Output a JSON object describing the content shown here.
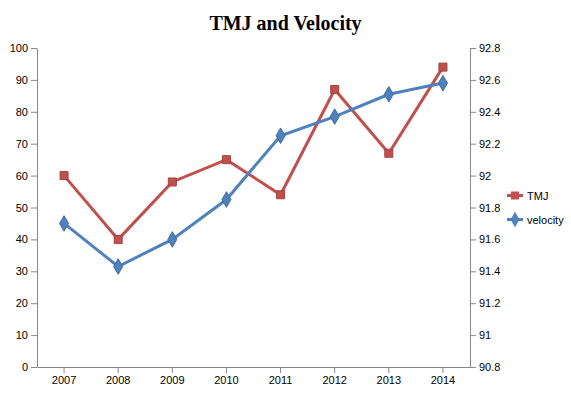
{
  "chart_data": {
    "type": "line",
    "title": "TMJ and Velocity",
    "categories": [
      "2007",
      "2008",
      "2009",
      "2010",
      "2011",
      "2012",
      "2013",
      "2014"
    ],
    "series": [
      {
        "name": "TMJ",
        "color": "#c0504d",
        "marker": "square",
        "values": [
          60,
          40,
          58,
          65,
          54,
          87,
          67,
          94
        ]
      },
      {
        "name": "velocity",
        "color": "#4f81bd",
        "marker": "diamond",
        "axis": "y2",
        "values": [
          91.7,
          91.43,
          91.6,
          91.85,
          92.25,
          92.37,
          92.51,
          92.58
        ]
      }
    ],
    "ylim": [
      0,
      100
    ],
    "yticks": [
      0,
      10,
      20,
      30,
      40,
      50,
      60,
      70,
      80,
      90,
      100
    ],
    "y2lim": [
      90.8,
      92.8
    ],
    "y2ticks": [
      90.8,
      91,
      91.2,
      91.4,
      91.6,
      91.8,
      92,
      92.2,
      92.4,
      92.6,
      92.8
    ],
    "grid": false,
    "legend": "right"
  }
}
